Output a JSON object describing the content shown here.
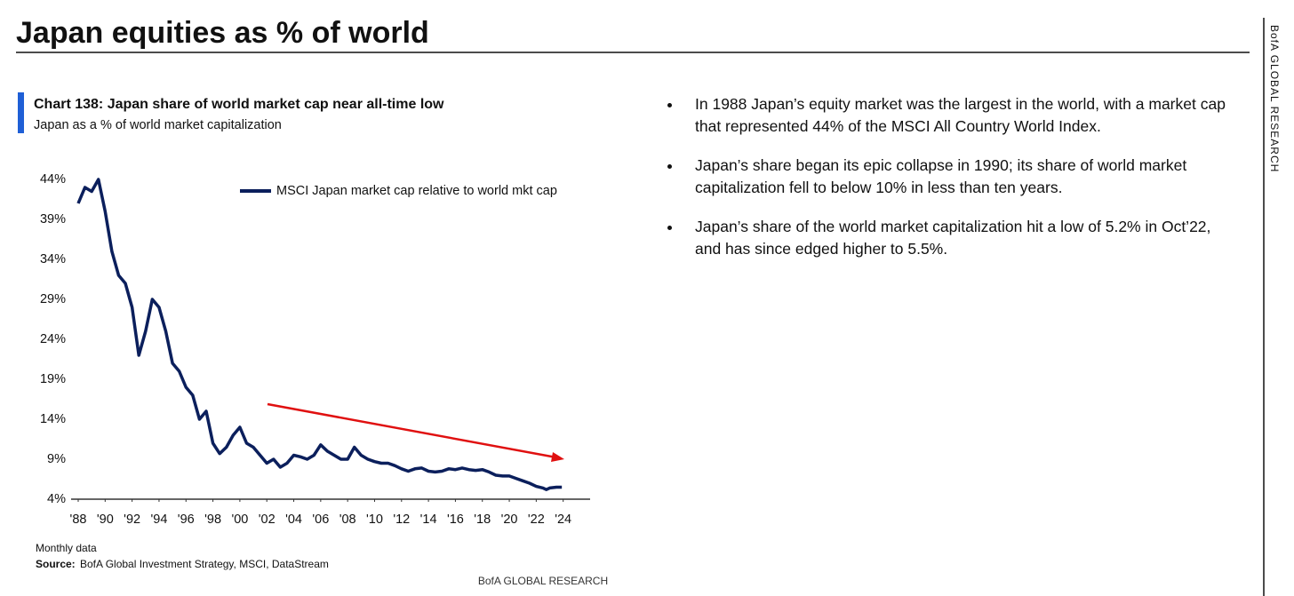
{
  "header": {
    "title": "Japan equities as % of world",
    "side_label": "BofA GLOBAL RESEARCH"
  },
  "chart_data": {
    "type": "line",
    "title": "Chart 138: Japan share of world market cap near all-time low",
    "subtitle": "Japan as a % of world market capitalization",
    "x": [
      1988,
      1988.5,
      1989,
      1989.5,
      1990,
      1990.5,
      1991,
      1991.5,
      1992,
      1992.5,
      1993,
      1993.5,
      1994,
      1994.5,
      1995,
      1995.5,
      1996,
      1996.5,
      1997,
      1997.5,
      1998,
      1998.5,
      1999,
      1999.5,
      2000,
      2000.5,
      2001,
      2001.5,
      2002,
      2002.5,
      2003,
      2003.5,
      2004,
      2004.5,
      2005,
      2005.5,
      2006,
      2006.5,
      2007,
      2007.5,
      2008,
      2008.5,
      2009,
      2009.5,
      2010,
      2010.5,
      2011,
      2011.5,
      2012,
      2012.5,
      2013,
      2013.5,
      2014,
      2014.5,
      2015,
      2015.5,
      2016,
      2016.5,
      2017,
      2017.5,
      2018,
      2018.5,
      2019,
      2019.5,
      2020,
      2020.5,
      2021,
      2021.5,
      2022,
      2022.5,
      2022.75,
      2023,
      2023.5,
      2023.9
    ],
    "series": [
      {
        "name": "MSCI Japan market cap relative to world mkt cap",
        "color": "#0b1f5c",
        "values": [
          41,
          43,
          42.5,
          44,
          40,
          35,
          32,
          31,
          28,
          22,
          25,
          29,
          28,
          25,
          21,
          20,
          18,
          17,
          14,
          15,
          11,
          9.7,
          10.5,
          12,
          13,
          11,
          10.5,
          9.5,
          8.5,
          9,
          8,
          8.5,
          9.5,
          9.3,
          9,
          9.5,
          10.8,
          10,
          9.5,
          9,
          9,
          10.5,
          9.5,
          9,
          8.7,
          8.5,
          8.5,
          8.2,
          7.8,
          7.5,
          7.8,
          7.9,
          7.5,
          7.4,
          7.5,
          7.8,
          7.7,
          7.9,
          7.7,
          7.6,
          7.7,
          7.4,
          7,
          6.9,
          6.9,
          6.6,
          6.3,
          6,
          5.6,
          5.4,
          5.2,
          5.4,
          5.5,
          5.5
        ]
      }
    ],
    "xlim": [
      1988,
      2026
    ],
    "xticks": [
      {
        "value": 1988,
        "label": "'88"
      },
      {
        "value": 1990,
        "label": "'90"
      },
      {
        "value": 1992,
        "label": "'92"
      },
      {
        "value": 1994,
        "label": "'94"
      },
      {
        "value": 1996,
        "label": "'96"
      },
      {
        "value": 1998,
        "label": "'98"
      },
      {
        "value": 2000,
        "label": "'00"
      },
      {
        "value": 2002,
        "label": "'02"
      },
      {
        "value": 2004,
        "label": "'04"
      },
      {
        "value": 2006,
        "label": "'06"
      },
      {
        "value": 2008,
        "label": "'08"
      },
      {
        "value": 2010,
        "label": "'10"
      },
      {
        "value": 2012,
        "label": "'12"
      },
      {
        "value": 2014,
        "label": "'14"
      },
      {
        "value": 2016,
        "label": "'16"
      },
      {
        "value": 2018,
        "label": "'18"
      },
      {
        "value": 2020,
        "label": "'20"
      },
      {
        "value": 2022,
        "label": "'22"
      },
      {
        "value": 2024,
        "label": "'24"
      }
    ],
    "ylim": [
      4,
      44
    ],
    "yticks": [
      {
        "value": 4,
        "label": "4%"
      },
      {
        "value": 9,
        "label": "9%"
      },
      {
        "value": 14,
        "label": "14%"
      },
      {
        "value": 19,
        "label": "19%"
      },
      {
        "value": 24,
        "label": "24%"
      },
      {
        "value": 29,
        "label": "29%"
      },
      {
        "value": 34,
        "label": "34%"
      },
      {
        "value": 39,
        "label": "39%"
      },
      {
        "value": 44,
        "label": "44%"
      }
    ],
    "grid": false
  },
  "footnote": {
    "note": "Monthly data",
    "source_label": "Source:",
    "source": "BofA Global Investment Strategy, MSCI, DataStream",
    "credit": "BofA GLOBAL RESEARCH"
  },
  "bullets": [
    "In 1988 Japan’s equity market was the largest in the world, with a market cap that represented 44% of the MSCI All Country World Index.",
    "Japan’s share began its epic collapse in 1990; its share of world market capitalization fell to below 10% in less than ten years.",
    "Japan’s share of the world market capitalization hit a low of 5.2% in Oct’22, and has since edged higher to 5.5%."
  ]
}
